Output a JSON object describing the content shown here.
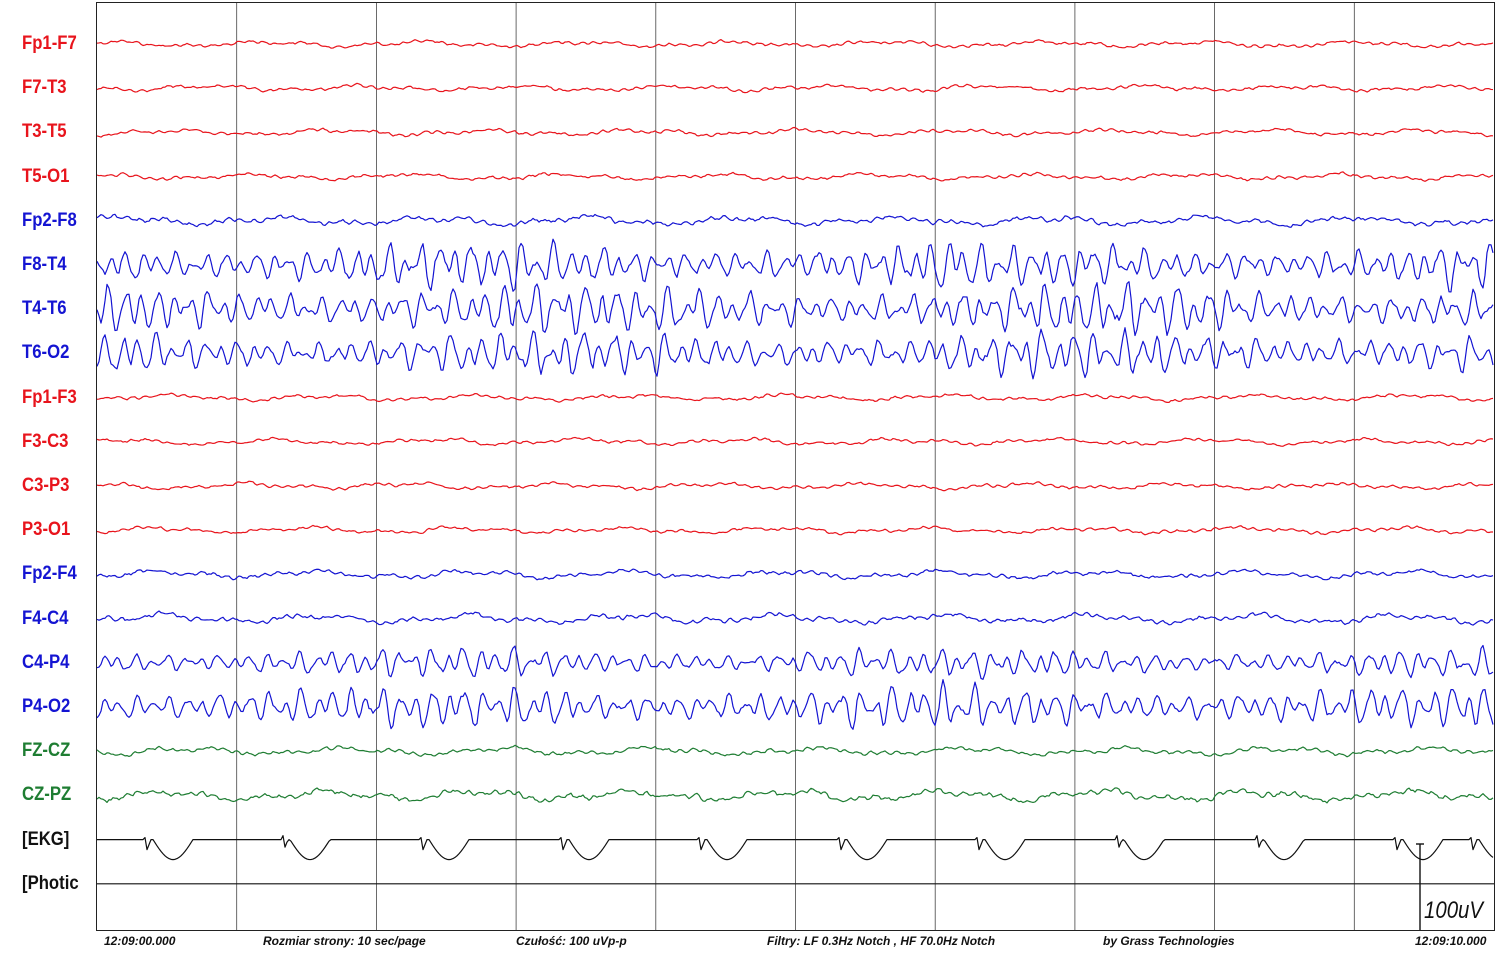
{
  "channels": [
    {
      "label": "Fp1-F7",
      "color": "#e8141c",
      "kind": "eeg",
      "amplitude": 4,
      "activity": "low"
    },
    {
      "label": "F7-T3",
      "color": "#e8141c",
      "kind": "eeg",
      "amplitude": 4,
      "activity": "low"
    },
    {
      "label": "T3-T5",
      "color": "#e8141c",
      "kind": "eeg",
      "amplitude": 4,
      "activity": "low"
    },
    {
      "label": "T5-O1",
      "color": "#e8141c",
      "kind": "eeg",
      "amplitude": 4,
      "activity": "low"
    },
    {
      "label": "Fp2-F8",
      "color": "#1414d2",
      "kind": "eeg",
      "amplitude": 6,
      "activity": "low"
    },
    {
      "label": "F8-T4",
      "color": "#1414d2",
      "kind": "eeg",
      "amplitude": 24,
      "activity": "high"
    },
    {
      "label": "T4-T6",
      "color": "#1414d2",
      "kind": "eeg",
      "amplitude": 26,
      "activity": "high"
    },
    {
      "label": "T6-O2",
      "color": "#1414d2",
      "kind": "eeg",
      "amplitude": 24,
      "activity": "high"
    },
    {
      "label": "Fp1-F3",
      "color": "#e8141c",
      "kind": "eeg",
      "amplitude": 4,
      "activity": "low"
    },
    {
      "label": "F3-C3",
      "color": "#e8141c",
      "kind": "eeg",
      "amplitude": 4,
      "activity": "low"
    },
    {
      "label": "C3-P3",
      "color": "#e8141c",
      "kind": "eeg",
      "amplitude": 4,
      "activity": "low"
    },
    {
      "label": "P3-O1",
      "color": "#e8141c",
      "kind": "eeg",
      "amplitude": 4,
      "activity": "low"
    },
    {
      "label": "Fp2-F4",
      "color": "#1414d2",
      "kind": "eeg",
      "amplitude": 5,
      "activity": "low"
    },
    {
      "label": "F4-C4",
      "color": "#1414d2",
      "kind": "eeg",
      "amplitude": 6,
      "activity": "low"
    },
    {
      "label": "C4-P4",
      "color": "#1414d2",
      "kind": "eeg",
      "amplitude": 16,
      "activity": "high"
    },
    {
      "label": "P4-O2",
      "color": "#1414d2",
      "kind": "eeg",
      "amplitude": 22,
      "activity": "high"
    },
    {
      "label": "FZ-CZ",
      "color": "#1e7d32",
      "kind": "eeg",
      "amplitude": 5,
      "activity": "low"
    },
    {
      "label": "CZ-PZ",
      "color": "#1e7d32",
      "kind": "eeg",
      "amplitude": 7,
      "activity": "low"
    },
    {
      "label": "[EKG]",
      "color": "#111111",
      "kind": "ekg",
      "amplitude": 0,
      "activity": "none"
    },
    {
      "label": "[Photic",
      "color": "#111111",
      "kind": "flat",
      "amplitude": 0,
      "activity": "none"
    }
  ],
  "footer": {
    "start_time": "12:09:00.000",
    "page_size": "Rozmiar strony: 10 sec/page",
    "sensitivity": "Czułość:  100 uVp-p",
    "filters": "Filtry: LF  0.3Hz Notch , HF 70.0Hz Notch",
    "vendor": "by Grass Technologies",
    "end_time": "12:09:10.000"
  },
  "scale_marker": {
    "label": "100uV"
  },
  "seconds_per_page": 10,
  "colors": {
    "red": "#e8141c",
    "blue": "#1414d2",
    "green": "#1e7d32",
    "black": "#111111",
    "grid": "#444444"
  }
}
